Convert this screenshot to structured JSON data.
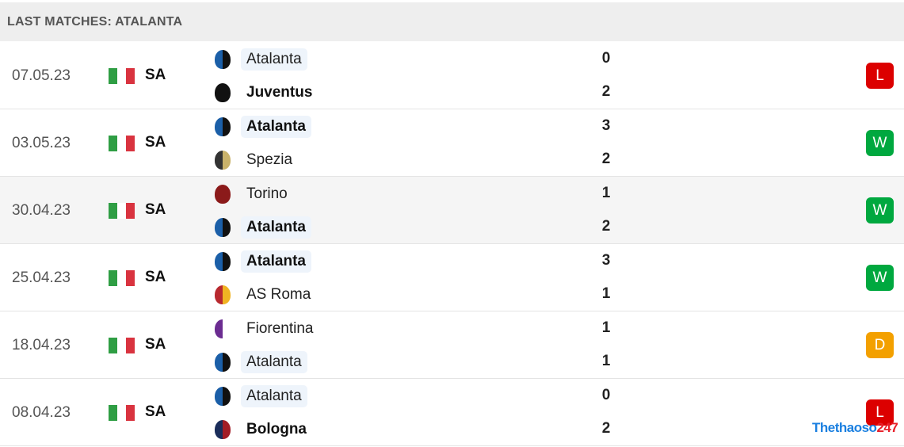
{
  "header": {
    "title": "LAST MATCHES: ATALANTA"
  },
  "colors": {
    "L": "#dc0000",
    "W": "#00a83f",
    "D": "#f3a000"
  },
  "matches": [
    {
      "date": "07.05.23",
      "league": "SA",
      "result": "L",
      "home": {
        "name": "Atalanta",
        "score": "0",
        "logo": "atalanta-logo",
        "bold": false,
        "hl": true
      },
      "away": {
        "name": "Juventus",
        "score": "2",
        "logo": "juventus-logo",
        "bold": true,
        "hl": false
      }
    },
    {
      "date": "03.05.23",
      "league": "SA",
      "result": "W",
      "home": {
        "name": "Atalanta",
        "score": "3",
        "logo": "atalanta-logo",
        "bold": true,
        "hl": true
      },
      "away": {
        "name": "Spezia",
        "score": "2",
        "logo": "spezia-logo",
        "bold": false,
        "hl": false
      }
    },
    {
      "date": "30.04.23",
      "league": "SA",
      "result": "W",
      "home": {
        "name": "Torino",
        "score": "1",
        "logo": "torino-logo",
        "bold": false,
        "hl": false
      },
      "away": {
        "name": "Atalanta",
        "score": "2",
        "logo": "atalanta-logo",
        "bold": true,
        "hl": true
      }
    },
    {
      "date": "25.04.23",
      "league": "SA",
      "result": "W",
      "home": {
        "name": "Atalanta",
        "score": "3",
        "logo": "atalanta-logo",
        "bold": true,
        "hl": true
      },
      "away": {
        "name": "AS Roma",
        "score": "1",
        "logo": "roma-logo",
        "bold": false,
        "hl": false
      }
    },
    {
      "date": "18.04.23",
      "league": "SA",
      "result": "D",
      "home": {
        "name": "Fiorentina",
        "score": "1",
        "logo": "fiorentina-logo",
        "bold": false,
        "hl": false
      },
      "away": {
        "name": "Atalanta",
        "score": "1",
        "logo": "atalanta-logo",
        "bold": false,
        "hl": true
      }
    },
    {
      "date": "08.04.23",
      "league": "SA",
      "result": "L",
      "home": {
        "name": "Atalanta",
        "score": "0",
        "logo": "atalanta-logo",
        "bold": false,
        "hl": true
      },
      "away": {
        "name": "Bologna",
        "score": "2",
        "logo": "bologna-logo",
        "bold": true,
        "hl": false
      }
    }
  ],
  "watermark": {
    "a": "Thethaoso",
    "b": "247"
  }
}
